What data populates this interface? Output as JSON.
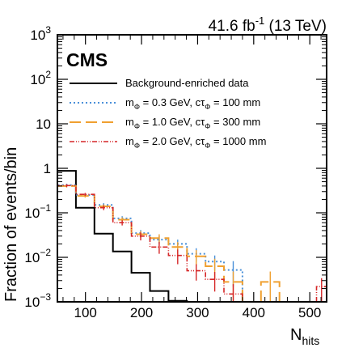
{
  "header": {
    "experiment": "CMS",
    "lumi_value": "41.6 fb",
    "lumi_exp": "-1",
    "lumi_energy": " (13 TeV)"
  },
  "chart_data": {
    "type": "histogram-step",
    "xlabel": {
      "main": "N",
      "sub": "hits"
    },
    "ylabel": "Fraction of events/bin",
    "xlim": [
      50,
      530
    ],
    "ylim": [
      0.001,
      1000
    ],
    "y_log_scale": true,
    "x_ticks": [
      100,
      200,
      300,
      400,
      500
    ],
    "y_ticks": [
      {
        "value": 0.001,
        "base": "10",
        "exp": "−3"
      },
      {
        "value": 0.01,
        "base": "10",
        "exp": "−2"
      },
      {
        "value": 0.1,
        "base": "10",
        "exp": "−1"
      },
      {
        "value": 1,
        "base": "1",
        "exp": ""
      },
      {
        "value": 10,
        "base": "10",
        "exp": ""
      },
      {
        "value": 100,
        "base": "10",
        "exp": "2"
      },
      {
        "value": 1000,
        "base": "10",
        "exp": "3"
      }
    ],
    "bin_edges": [
      50,
      83,
      116,
      149,
      182,
      215,
      248,
      281,
      314,
      347,
      380,
      413,
      446,
      479,
      512,
      530
    ],
    "legend_position": "top",
    "series": [
      {
        "name": "Background-enriched data",
        "name_parts": {
          "text": "Background-enriched data"
        },
        "color": "#000000",
        "dash": "none",
        "width": 2,
        "values": [
          0.88,
          0.13,
          0.034,
          0.0135,
          0.0045,
          0.00175,
          0.00105,
          0.0007,
          0,
          0,
          0,
          0,
          0,
          0,
          0
        ],
        "errors": [
          0,
          0,
          0,
          0,
          0,
          0,
          0,
          0,
          0,
          0,
          0,
          0,
          0,
          0,
          0
        ]
      },
      {
        "name": "m_Φ = 0.3 GeV, cτ_Φ = 100 mm",
        "name_parts": {
          "m": "m",
          "sub1": "Φ",
          "mid": " = 0.3 GeV, cτ",
          "sub2": "Φ",
          "end": " = 100 mm"
        },
        "color": "#4a90d9",
        "dash": "2 3",
        "width": 2,
        "values": [
          0.42,
          0.25,
          0.15,
          0.075,
          0.035,
          0.025,
          0.02,
          0.012,
          0.008,
          0.0052,
          0,
          0,
          0,
          0,
          0
        ],
        "errors": [
          0.03,
          0.02,
          0.015,
          0.009,
          0.006,
          0.005,
          0.005,
          0.004,
          0.003,
          0.003,
          0,
          0,
          0,
          0,
          0
        ]
      },
      {
        "name": "m_Φ = 1.0 GeV, cτ_Φ = 300 mm",
        "name_parts": {
          "m": "m",
          "sub1": "Φ",
          "mid": " = 1.0 GeV, cτ",
          "sub2": "Φ",
          "end": " = 300 mm"
        },
        "color": "#f0a030",
        "dash": "14 6",
        "width": 2,
        "values": [
          0.4,
          0.24,
          0.14,
          0.07,
          0.033,
          0.027,
          0.017,
          0.0105,
          0.0063,
          0.0028,
          0,
          0.0028,
          0,
          0,
          0
        ],
        "errors": [
          0.03,
          0.02,
          0.015,
          0.009,
          0.006,
          0.006,
          0.005,
          0.004,
          0.003,
          0.002,
          0,
          0.002,
          0,
          0,
          0
        ]
      },
      {
        "name": "m_Φ = 2.0 GeV, cτ_Φ = 1000 mm",
        "name_parts": {
          "m": "m",
          "sub1": "Φ",
          "mid": " = 2.0 GeV, cτ",
          "sub2": "Φ",
          "end": " = 1000 mm"
        },
        "color": "#d62728",
        "dash": "6 2 1 2 1 2",
        "width": 1.6,
        "values": [
          0.41,
          0.26,
          0.13,
          0.06,
          0.03,
          0.017,
          0.011,
          0.005,
          0.0032,
          0.0015,
          0,
          0,
          0,
          0,
          0.0022
        ],
        "errors": [
          0.03,
          0.02,
          0.015,
          0.008,
          0.006,
          0.005,
          0.004,
          0.002,
          0.0015,
          0.001,
          0,
          0,
          0,
          0,
          0.0012
        ]
      }
    ]
  }
}
